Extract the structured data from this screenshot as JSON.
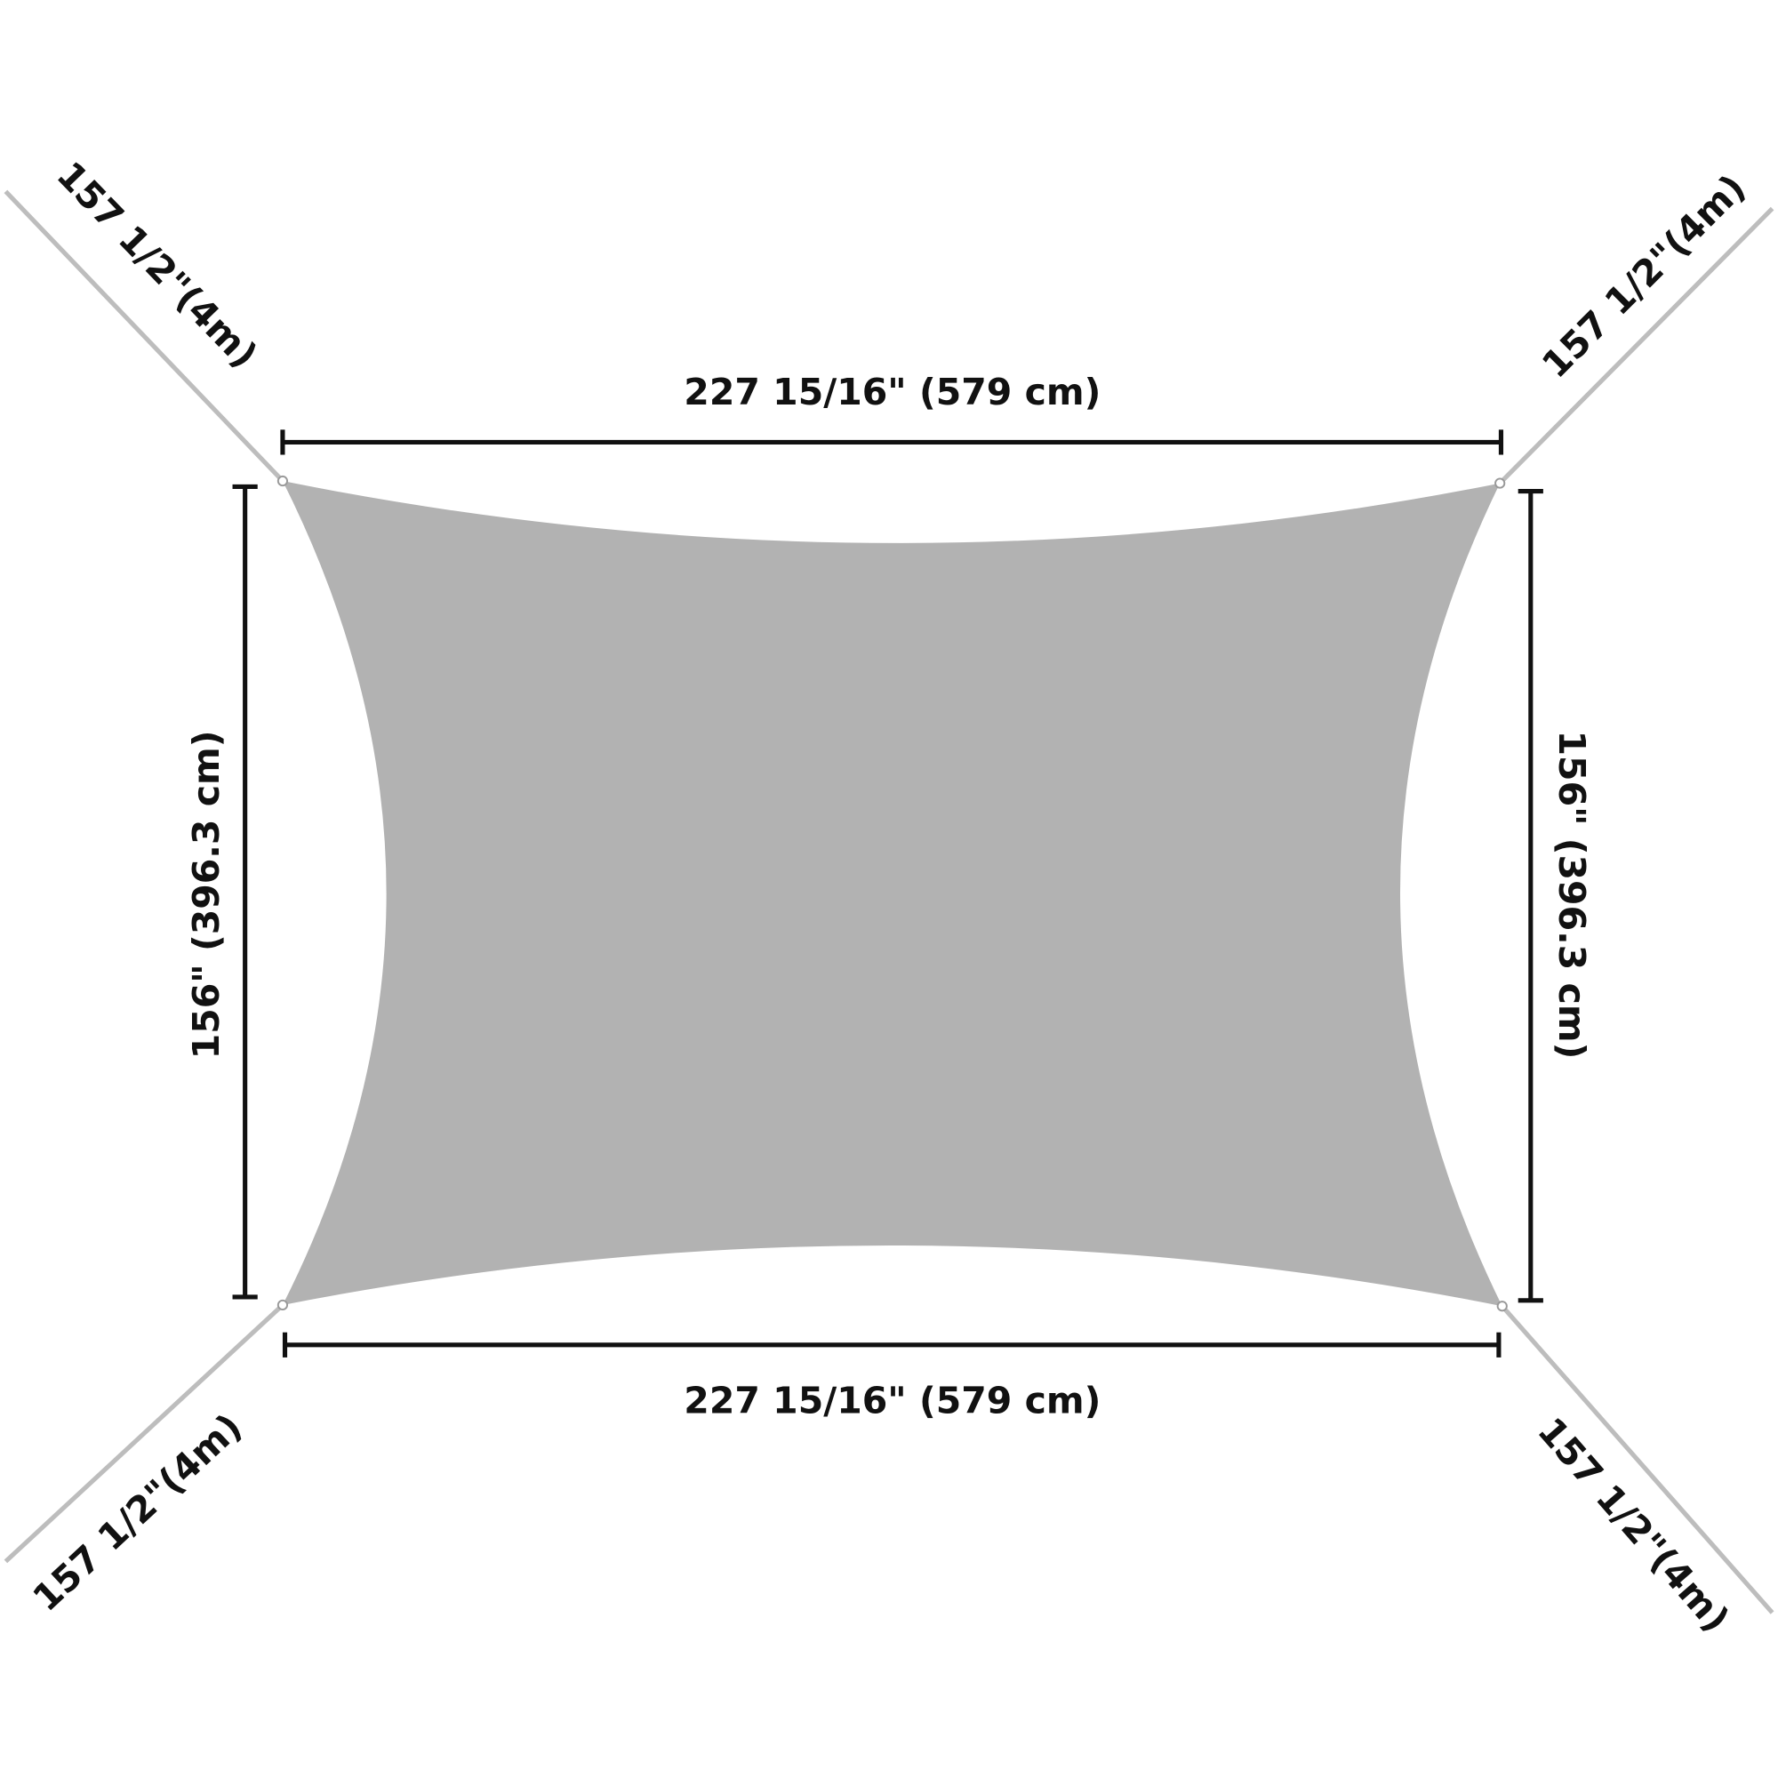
{
  "diagram": {
    "shape_color": "#b2b2b2",
    "rope_color": "#bdbdbd",
    "line_color": "#111111",
    "top_width_label": "227 15/16\" (579 cm)",
    "bottom_width_label": "227 15/16\" (579 cm)",
    "left_height_label": "156\" (396.3 cm)",
    "right_height_label": "156\" (396.3 cm)",
    "rope_top_left_label": "157 1/2\"(4m)",
    "rope_top_right_label": "157 1/2\"(4m)",
    "rope_bottom_left_label": "157 1/2\"(4m)",
    "rope_bottom_right_label": "157 1/2\"(4m)"
  }
}
